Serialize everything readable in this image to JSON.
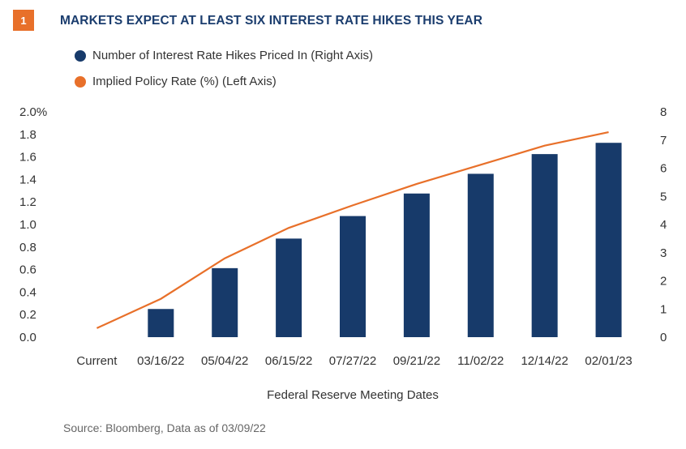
{
  "header": {
    "badge": "1",
    "title": "MARKETS EXPECT AT LEAST SIX INTEREST RATE HIKES THIS YEAR"
  },
  "colors": {
    "bar": "#173a6a",
    "line": "#e8702a",
    "badge": "#e8702a",
    "title": "#1b3d6e",
    "axis": "#333333"
  },
  "legend": {
    "items": [
      {
        "label": "Number of Interest Rate Hikes Priced In (Right Axis)",
        "marker": "dark-blue-circle"
      },
      {
        "label": "Implied Policy Rate (%) (Left Axis)",
        "marker": "orange-circle"
      }
    ]
  },
  "source": "Source: Bloomberg, Data as of  03/09/22",
  "chart_data": {
    "type": "bar",
    "title": "MARKETS EXPECT AT LEAST SIX INTEREST RATE HIKES THIS YEAR",
    "xlabel": "Federal Reserve Meeting Dates",
    "categories": [
      "Current",
      "03/16/22",
      "05/04/22",
      "06/15/22",
      "07/27/22",
      "09/21/22",
      "11/02/22",
      "12/14/22",
      "02/01/23"
    ],
    "left_axis": {
      "ylim": [
        0,
        2.0
      ],
      "ticks": [
        "0.0",
        "0.2",
        "0.4",
        "0.6",
        "0.8",
        "1.0",
        "1.2",
        "1.4",
        "1.6",
        "1.8",
        "2.0%"
      ]
    },
    "right_axis": {
      "ylim": [
        0,
        8
      ],
      "ticks": [
        "0",
        "1",
        "2",
        "3",
        "4",
        "5",
        "6",
        "7",
        "8"
      ]
    },
    "series": [
      {
        "name": "Number of Interest Rate Hikes Priced In (Right Axis)",
        "type": "bar",
        "axis": "right",
        "values": [
          null,
          1.0,
          2.45,
          3.5,
          4.3,
          5.1,
          5.8,
          6.5,
          6.9
        ]
      },
      {
        "name": "Implied Policy Rate (%) (Left Axis)",
        "type": "line",
        "axis": "left",
        "values": [
          0.08,
          0.34,
          0.7,
          0.97,
          1.17,
          1.36,
          1.53,
          1.7,
          1.82
        ]
      }
    ],
    "grid": false,
    "legend_position": "top-left"
  }
}
